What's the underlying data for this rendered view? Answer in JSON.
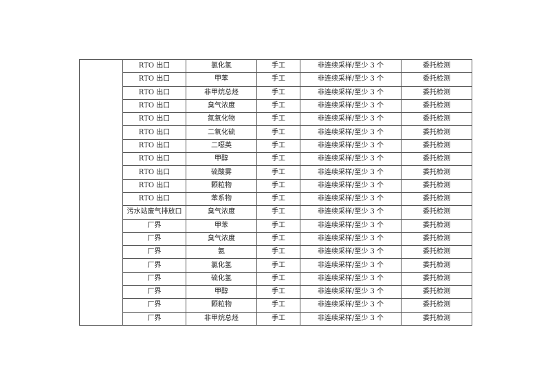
{
  "table": {
    "rows": [
      [
        "RTO 出口",
        "氯化氢",
        "手工",
        "非连续采样/至少 3 个",
        "委托检测"
      ],
      [
        "RTO 出口",
        "甲苯",
        "手工",
        "非连续采样/至少 3 个",
        "委托检测"
      ],
      [
        "RTO 出口",
        "非甲烷总烃",
        "手工",
        "非连续采样/至少 3 个",
        "委托检测"
      ],
      [
        "RTO 出口",
        "臭气浓度",
        "手工",
        "非连续采样/至少 3 个",
        "委托检测"
      ],
      [
        "RTO 出口",
        "氮氧化物",
        "手工",
        "非连续采样/至少 3 个",
        "委托检测"
      ],
      [
        "RTO 出口",
        "二氧化硫",
        "手工",
        "非连续采样/至少 3 个",
        "委托检测"
      ],
      [
        "RTO 出口",
        "二噁英",
        "手工",
        "非连续采样/至少 3 个",
        "委托检测"
      ],
      [
        "RTO 出口",
        "甲醇",
        "手工",
        "非连续采样/至少 3 个",
        "委托检测"
      ],
      [
        "RTO 出口",
        "硫酸雾",
        "手工",
        "非连续采样/至少 3 个",
        "委托检测"
      ],
      [
        "RTO 出口",
        "颗粒物",
        "手工",
        "非连续采样/至少 3 个",
        "委托检测"
      ],
      [
        "RTO 出口",
        "苯系物",
        "手工",
        "非连续采样/至少 3 个",
        "委托检测"
      ],
      [
        "污水站废气排放口",
        "臭气浓度",
        "手工",
        "非连续采样/至少 3 个",
        "委托检测"
      ],
      [
        "厂界",
        "甲苯",
        "手工",
        "非连续采样/至少 3 个",
        "委托检测"
      ],
      [
        "厂界",
        "臭气浓度",
        "手工",
        "非连续采样/至少 3 个",
        "委托检测"
      ],
      [
        "厂界",
        "氨",
        "手工",
        "非连续采样/至少 3 个",
        "委托检测"
      ],
      [
        "厂界",
        "氯化氢",
        "手工",
        "非连续采样/至少 3 个",
        "委托检测"
      ],
      [
        "厂界",
        "硫化氢",
        "手工",
        "非连续采样/至少 3 个",
        "委托检测"
      ],
      [
        "厂界",
        "甲醇",
        "手工",
        "非连续采样/至少 3 个",
        "委托检测"
      ],
      [
        "厂界",
        "颗粒物",
        "手工",
        "非连续采样/至少 3 个",
        "委托检测"
      ],
      [
        "厂界",
        "非甲烷总烃",
        "手工",
        "非连续采样/至少 3 个",
        "委托检测"
      ]
    ]
  }
}
